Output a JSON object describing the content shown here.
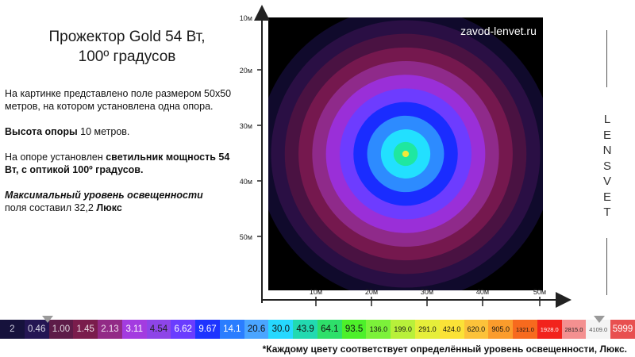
{
  "title": {
    "line1": "Прожектор Gold 54 Вт,",
    "line2": "100º градусов"
  },
  "description": {
    "intro": "На картинке представлено поле размером 50х50 метров, на котором установлена  одна опора.",
    "height_label": "Высота опоры",
    "height_value": " 10 метров.",
    "fixture_prefix": "На опоре установлен ",
    "fixture_bold": "светильник мощность 54 Вт, с оптикой 100º градусов.",
    "max_label": "Максимальный уровень освещенности",
    "max_text": "поля  составил 32,2 ",
    "max_unit": "Люкс"
  },
  "watermark": "zavod-lenvet.ru",
  "brand_letters": [
    "L",
    "E",
    "N",
    "S",
    "V",
    "E",
    "T"
  ],
  "y_axis_ticks": [
    "10м",
    "20м",
    "30м",
    "40м",
    "50м"
  ],
  "x_axis_ticks": [
    "10м",
    "20м",
    "30м",
    "40м",
    "50м"
  ],
  "diagram_data": {
    "field_size_m": 50,
    "pole_position_m": [
      25,
      25
    ],
    "background": "#000000",
    "rings_outer_to_inner": [
      {
        "radius_m": 27,
        "color": "#100a2c"
      },
      {
        "radius_m": 24.5,
        "color": "#2a0f44"
      },
      {
        "radius_m": 22,
        "color": "#4a1242"
      },
      {
        "radius_m": 19.5,
        "color": "#75184e"
      },
      {
        "radius_m": 17,
        "color": "#8f2a8a"
      },
      {
        "radius_m": 14.5,
        "color": "#9a2fd8"
      },
      {
        "radius_m": 12,
        "color": "#6d3cff"
      },
      {
        "radius_m": 9.5,
        "color": "#1a2cff"
      },
      {
        "radius_m": 7,
        "color": "#2d8bff"
      },
      {
        "radius_m": 4.5,
        "color": "#22e0ff"
      },
      {
        "radius_m": 2.2,
        "color": "#1fe7a0"
      },
      {
        "radius_m": 0.6,
        "color": "#f2e83a"
      }
    ]
  },
  "legend": [
    {
      "label": "2",
      "bg": "#16123c",
      "fg": "#cfcfe0"
    },
    {
      "label": "0.46",
      "bg": "#241653",
      "fg": "#dcdcea"
    },
    {
      "label": "1.00",
      "bg": "#5d1c48",
      "fg": "#e0d8e0"
    },
    {
      "label": "1.45",
      "bg": "#7a1d4c",
      "fg": "#eadce4"
    },
    {
      "label": "2.13",
      "bg": "#922a86",
      "fg": "#f0dff0"
    },
    {
      "label": "3.11",
      "bg": "#a33ce0",
      "fg": "#ffffff"
    },
    {
      "label": "4.54",
      "bg": "#8e45e8",
      "fg": "#222222"
    },
    {
      "label": "6.62",
      "bg": "#6a3cff",
      "fg": "#ffffff"
    },
    {
      "label": "9.67",
      "bg": "#1d34ff",
      "fg": "#ffffff"
    },
    {
      "label": "14.1",
      "bg": "#2a7dff",
      "fg": "#ffffff"
    },
    {
      "label": "20.6",
      "bg": "#4aa5ff",
      "fg": "#111111"
    },
    {
      "label": "30.0",
      "bg": "#26d8ff",
      "fg": "#111111"
    },
    {
      "label": "43.9",
      "bg": "#22d9b0",
      "fg": "#111111"
    },
    {
      "label": "64.1",
      "bg": "#2ee06a",
      "fg": "#111111"
    },
    {
      "label": "93.5",
      "bg": "#4df02a",
      "fg": "#111111"
    },
    {
      "label": "136.0",
      "bg": "#7cf23a",
      "fg": "#111111"
    },
    {
      "label": "199.0",
      "bg": "#b8f03a",
      "fg": "#111111"
    },
    {
      "label": "291.0",
      "bg": "#e6ee3a",
      "fg": "#111111"
    },
    {
      "label": "424.0",
      "bg": "#fbe237",
      "fg": "#111111"
    },
    {
      "label": "620.0",
      "bg": "#fcc23a",
      "fg": "#111111"
    },
    {
      "label": "905.0",
      "bg": "#fb9c2c",
      "fg": "#111111"
    },
    {
      "label": "1321.0",
      "bg": "#f76a1e",
      "fg": "#111111"
    },
    {
      "label": "1928.0",
      "bg": "#f2231c",
      "fg": "#ffffff"
    },
    {
      "label": "2815.0",
      "bg": "#f49090",
      "fg": "#222222"
    },
    {
      "label": "4109.0",
      "bg": "#f4f4f4",
      "fg": "#555555"
    },
    {
      "label": "5999",
      "bg": "#e85050",
      "fg": "#ffffff"
    }
  ],
  "footnote": "*Каждому цвету соответствует  определённый уровень освещенности, Люкс."
}
